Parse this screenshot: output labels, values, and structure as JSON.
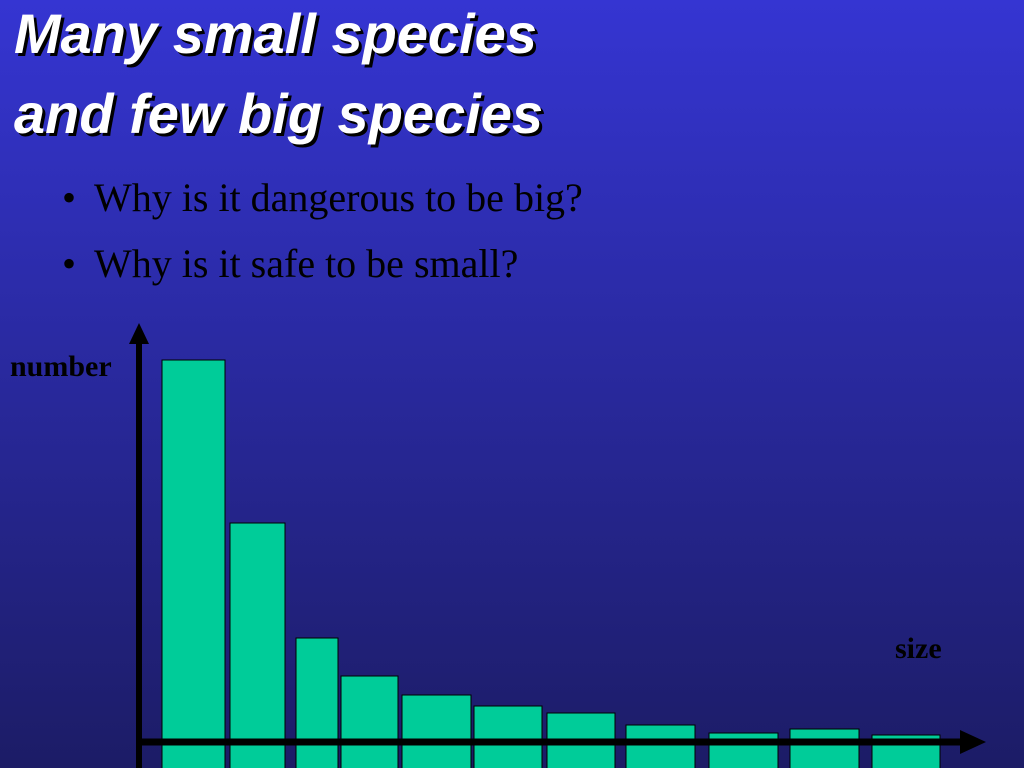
{
  "title": [
    "Many small species",
    "and few big species"
  ],
  "bullets": [
    "Why is it dangerous to be big?",
    "Why is it safe to be small?"
  ],
  "chart_data": {
    "type": "bar",
    "y_label": "number",
    "x_label": "size",
    "categories": [
      null,
      null,
      null,
      null,
      null,
      null,
      null,
      null,
      null,
      null,
      null
    ],
    "values": [
      408,
      245,
      130,
      92,
      73,
      62,
      55,
      43,
      35,
      39,
      33
    ],
    "color": "#00cc99"
  }
}
